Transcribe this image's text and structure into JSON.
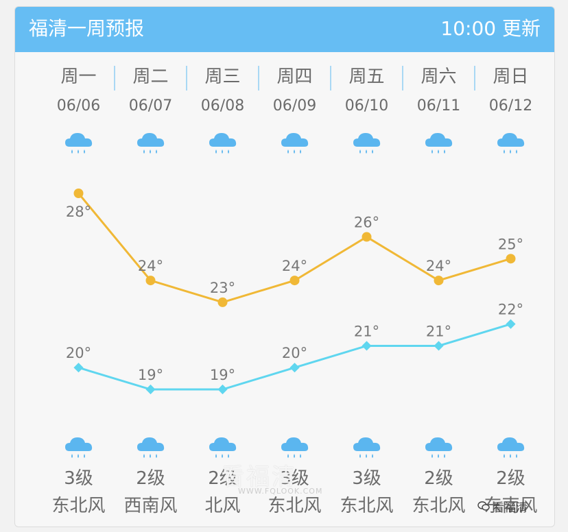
{
  "header": {
    "title": "福清一周预报",
    "update": "10:00 更新"
  },
  "days": [
    {
      "weekday": "周一",
      "date": "06/06",
      "icon": "rain-icon",
      "high": "28°",
      "low": "20°",
      "wind_level": "3级",
      "wind_dir": "东北风"
    },
    {
      "weekday": "周二",
      "date": "06/07",
      "icon": "rain-icon",
      "high": "24°",
      "low": "19°",
      "wind_level": "2级",
      "wind_dir": "西南风"
    },
    {
      "weekday": "周三",
      "date": "06/08",
      "icon": "rain-icon",
      "high": "23°",
      "low": "19°",
      "wind_level": "2级",
      "wind_dir": "北风"
    },
    {
      "weekday": "周四",
      "date": "06/09",
      "icon": "rain-icon",
      "high": "24°",
      "low": "20°",
      "wind_level": "3级",
      "wind_dir": "东北风"
    },
    {
      "weekday": "周五",
      "date": "06/10",
      "icon": "rain-icon",
      "high": "26°",
      "low": "21°",
      "wind_level": "3级",
      "wind_dir": "东北风"
    },
    {
      "weekday": "周六",
      "date": "06/11",
      "icon": "rain-icon",
      "high": "24°",
      "low": "21°",
      "wind_level": "2级",
      "wind_dir": "东北风"
    },
    {
      "weekday": "周日",
      "date": "06/12",
      "icon": "rain-icon",
      "high": "25°",
      "low": "22°",
      "wind_level": "2级",
      "wind_dir": "东南风"
    }
  ],
  "chart_data": {
    "type": "line",
    "categories": [
      "06/06",
      "06/07",
      "06/08",
      "06/09",
      "06/10",
      "06/11",
      "06/12"
    ],
    "series": [
      {
        "values": [
          28,
          24,
          23,
          24,
          26,
          24,
          25
        ],
        "color": "#f0b836"
      },
      {
        "values": [
          20,
          19,
          19,
          20,
          21,
          21,
          22
        ],
        "color": "#5fd6ef"
      }
    ]
  },
  "colors": {
    "header_bg": "#66bdf3",
    "high_line": "#f0b836",
    "low_line": "#5fd6ef",
    "icon": "#5bb6ef"
  },
  "watermark": {
    "site": "看福清",
    "url": "WWW.FQLOOK.COM",
    "account": "看福清"
  }
}
